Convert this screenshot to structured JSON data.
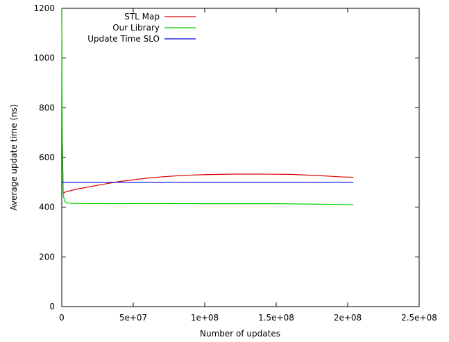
{
  "chart_data": {
    "type": "line",
    "xlabel": "Number of updates",
    "ylabel": "Average update time (ns)",
    "xlim": [
      0,
      250000000
    ],
    "ylim": [
      0,
      1200
    ],
    "x_ticks": [
      {
        "value": 0,
        "label": "0"
      },
      {
        "value": 50000000,
        "label": "5e+07"
      },
      {
        "value": 100000000,
        "label": "1e+08"
      },
      {
        "value": 150000000,
        "label": "1.5e+08"
      },
      {
        "value": 200000000,
        "label": "2e+08"
      },
      {
        "value": 250000000,
        "label": "2.5e+08"
      }
    ],
    "y_ticks": [
      {
        "value": 0,
        "label": "0"
      },
      {
        "value": 200,
        "label": "200"
      },
      {
        "value": 400,
        "label": "400"
      },
      {
        "value": 600,
        "label": "600"
      },
      {
        "value": 800,
        "label": "800"
      },
      {
        "value": 1000,
        "label": "1000"
      },
      {
        "value": 1200,
        "label": "1200"
      }
    ],
    "grid": false,
    "legend_position": "top-left",
    "series": [
      {
        "name": "STL Map",
        "color": "#dd0000",
        "x": [
          0,
          300000,
          1000000,
          2000000,
          5000000,
          10000000,
          20000000,
          30000000,
          40000000,
          50000000,
          60000000,
          70000000,
          80000000,
          90000000,
          100000000,
          120000000,
          140000000,
          160000000,
          180000000,
          195000000,
          204000000
        ],
        "y": [
          1200,
          700,
          455,
          460,
          465,
          472,
          483,
          493,
          503,
          510,
          517,
          522,
          526,
          529,
          531,
          533,
          533,
          532,
          527,
          522,
          520
        ]
      },
      {
        "name": "Our Library",
        "color": "#00cc00",
        "x": [
          0,
          300000,
          1000000,
          2000000,
          3000000,
          5000000,
          10000000,
          20000000,
          40000000,
          60000000,
          100000000,
          150000000,
          180000000,
          204000000
        ],
        "y": [
          1200,
          700,
          450,
          425,
          418,
          416,
          415,
          415,
          414,
          415,
          414,
          414,
          412,
          410
        ]
      },
      {
        "name": "Update Time SLO",
        "color": "#0000dd",
        "x": [
          0,
          204000000
        ],
        "y": [
          500,
          500
        ]
      }
    ]
  }
}
